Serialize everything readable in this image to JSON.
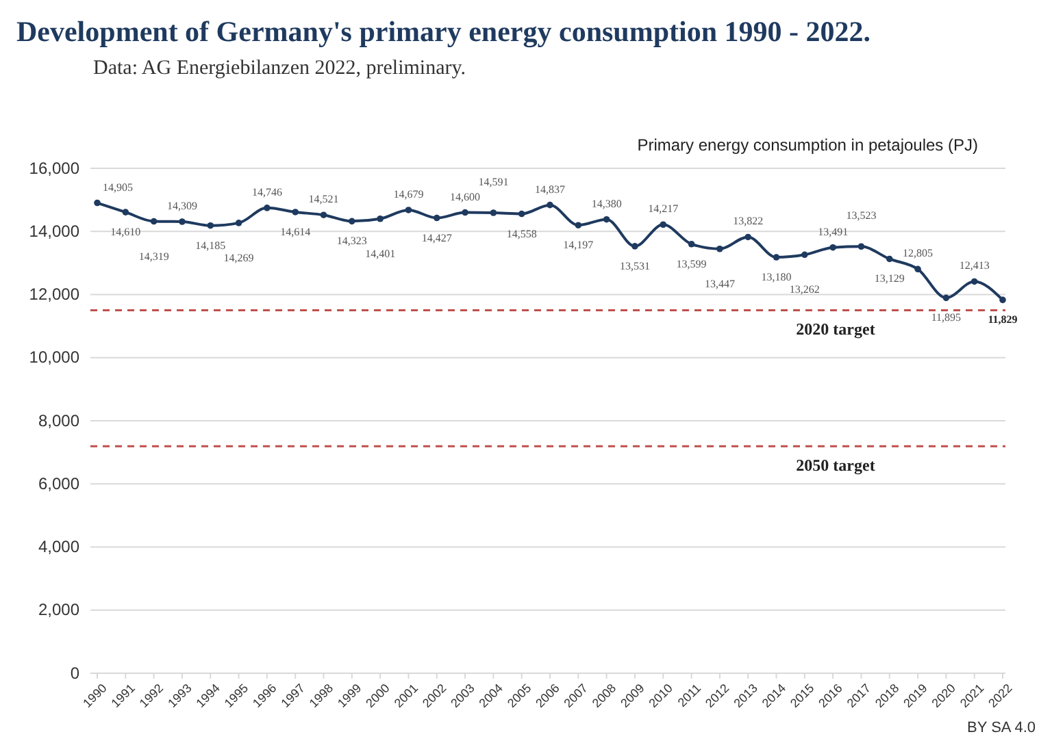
{
  "chart_data": {
    "type": "line",
    "title": "Development of Germany's primary energy consumption 1990 - 2022.",
    "subtitle": "Data: AG Energiebilanzen 2022, preliminary.",
    "ylabel": "Primary energy consumption in petajoules (PJ)",
    "categories": [
      "1990",
      "1991",
      "1992",
      "1993",
      "1994",
      "1995",
      "1996",
      "1997",
      "1998",
      "1999",
      "2000",
      "2001",
      "2002",
      "2003",
      "2004",
      "2005",
      "2006",
      "2007",
      "2008",
      "2009",
      "2010",
      "2011",
      "2012",
      "2013",
      "2014",
      "2015",
      "2016",
      "2017",
      "2018",
      "2019",
      "2020",
      "2021",
      "2022"
    ],
    "series": [
      {
        "color": "#1f3a5f",
        "values": [
          14905,
          14610,
          14319,
          14309,
          14185,
          14269,
          14746,
          14614,
          14521,
          14323,
          14401,
          14679,
          14427,
          14600,
          14591,
          14558,
          14837,
          14197,
          14380,
          13531,
          14217,
          13599,
          13447,
          13822,
          13180,
          13262,
          13491,
          13523,
          13129,
          12805,
          11895,
          12413,
          11829
        ],
        "value_labels": [
          "14,905",
          "14,610",
          "14,319",
          "14,309",
          "14,185",
          "14,269",
          "14,746",
          "14,614",
          "14,521",
          "14,323",
          "14,401",
          "14,679",
          "14,427",
          "14,600",
          "14,591",
          "14,558",
          "14,837",
          "14,197",
          "14,380",
          "13,531",
          "14,217",
          "13,599",
          "13,447",
          "13,822",
          "13,180",
          "13,262",
          "13,491",
          "13,523",
          "13,129",
          "12,805",
          "11,895",
          "12,413",
          "11,829"
        ]
      }
    ],
    "ylim": [
      0,
      16000
    ],
    "yticks": [
      {
        "value": 0,
        "label": "0"
      },
      {
        "value": 2000,
        "label": "2,000"
      },
      {
        "value": 4000,
        "label": "4,000"
      },
      {
        "value": 6000,
        "label": "6,000"
      },
      {
        "value": 8000,
        "label": "8,000"
      },
      {
        "value": 10000,
        "label": "10,000"
      },
      {
        "value": 12000,
        "label": "12,000"
      },
      {
        "value": 14000,
        "label": "14,000"
      },
      {
        "value": 16000,
        "label": "16,000"
      }
    ],
    "grid": "y",
    "marker": "circle",
    "line_style": "solid",
    "ref_lines": [
      {
        "axis": "y",
        "value": 11504,
        "label": "2020 target",
        "color": "#c0504d",
        "line_style": "dashed"
      },
      {
        "axis": "y",
        "value": 7190,
        "label": "2050 target",
        "color": "#c0504d",
        "line_style": "dashed"
      }
    ],
    "annotations": [
      "BY SA 4.0"
    ]
  }
}
